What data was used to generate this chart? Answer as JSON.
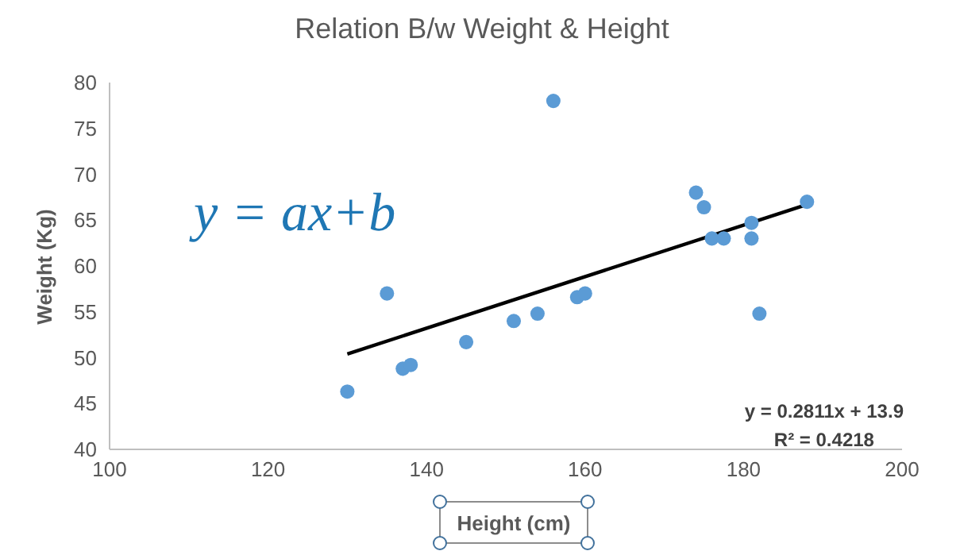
{
  "chart_data": {
    "type": "scatter",
    "title": "Relation B/w Weight & Height",
    "xlabel": "Height (cm)",
    "ylabel": "Weight (Kg)",
    "annotations": [
      "y = ax+b",
      "y = 0.2811x + 13.9",
      "R² = 0.4218"
    ],
    "xlim": [
      100,
      200
    ],
    "xticks": [
      100,
      120,
      140,
      160,
      180,
      200
    ],
    "ylim": [
      40,
      80
    ],
    "yticks": [
      40,
      45,
      50,
      55,
      60,
      65,
      70,
      75,
      80
    ],
    "grid": false,
    "marker": "circle",
    "series": [
      {
        "color": "#5b9bd5",
        "x": [
          130,
          135,
          137,
          138,
          145,
          151,
          154,
          156,
          159,
          160,
          174,
          175,
          176,
          177.5,
          181,
          181,
          182,
          188
        ],
        "values": [
          46.3,
          57,
          48.8,
          49.2,
          51.7,
          54,
          54.8,
          78,
          56.6,
          57,
          68,
          66.4,
          63,
          63,
          64.7,
          63,
          54.8,
          67
        ]
      },
      {
        "type": "line",
        "color": "#000000",
        "line_style": "solid",
        "marker": "none",
        "x": [
          130,
          188
        ],
        "values": [
          50.4,
          66.7
        ]
      }
    ]
  }
}
